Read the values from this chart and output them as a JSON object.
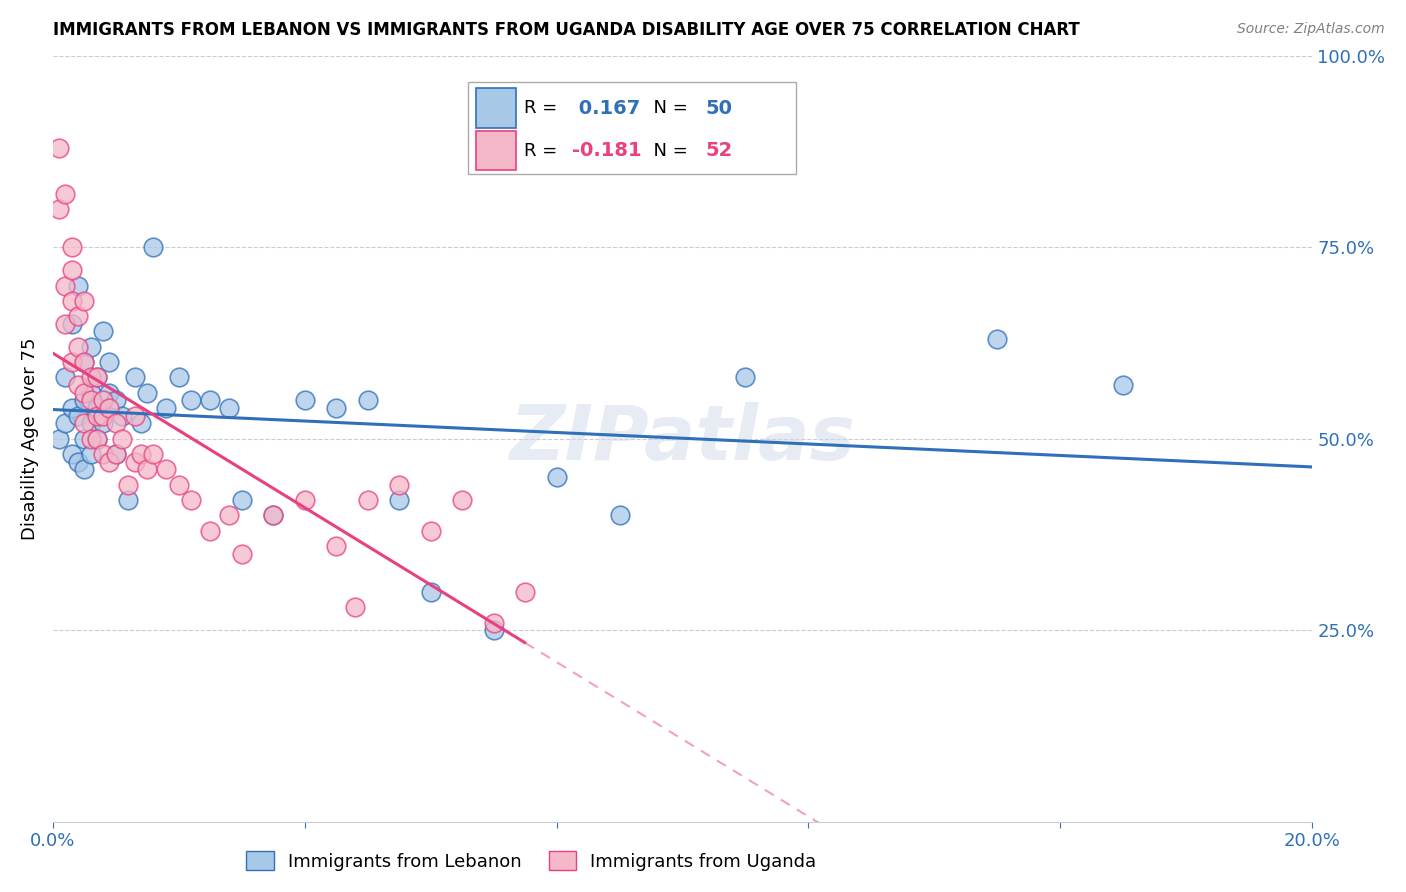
{
  "title": "IMMIGRANTS FROM LEBANON VS IMMIGRANTS FROM UGANDA DISABILITY AGE OVER 75 CORRELATION CHART",
  "source": "Source: ZipAtlas.com",
  "ylabel": "Disability Age Over 75",
  "xlim": [
    0.0,
    0.2
  ],
  "ylim": [
    0.0,
    1.0
  ],
  "lebanon_R": 0.167,
  "lebanon_N": 50,
  "uganda_R": -0.181,
  "uganda_N": 52,
  "lebanon_color": "#a8c8e8",
  "uganda_color": "#f4b8c8",
  "lebanon_line_color": "#3070b8",
  "uganda_line_color": "#e84080",
  "watermark": "ZIPatlas",
  "lebanon_x": [
    0.001,
    0.002,
    0.002,
    0.003,
    0.003,
    0.003,
    0.004,
    0.004,
    0.004,
    0.005,
    0.005,
    0.005,
    0.005,
    0.006,
    0.006,
    0.006,
    0.006,
    0.007,
    0.007,
    0.007,
    0.008,
    0.008,
    0.009,
    0.009,
    0.01,
    0.01,
    0.011,
    0.012,
    0.013,
    0.014,
    0.015,
    0.016,
    0.018,
    0.02,
    0.022,
    0.025,
    0.028,
    0.03,
    0.035,
    0.04,
    0.045,
    0.05,
    0.055,
    0.06,
    0.07,
    0.08,
    0.09,
    0.11,
    0.15,
    0.17
  ],
  "lebanon_y": [
    0.5,
    0.52,
    0.58,
    0.48,
    0.54,
    0.65,
    0.47,
    0.53,
    0.7,
    0.5,
    0.55,
    0.6,
    0.46,
    0.52,
    0.56,
    0.62,
    0.48,
    0.58,
    0.54,
    0.5,
    0.64,
    0.52,
    0.56,
    0.6,
    0.55,
    0.48,
    0.53,
    0.42,
    0.58,
    0.52,
    0.56,
    0.75,
    0.54,
    0.58,
    0.55,
    0.55,
    0.54,
    0.42,
    0.4,
    0.55,
    0.54,
    0.55,
    0.42,
    0.3,
    0.25,
    0.45,
    0.4,
    0.58,
    0.63,
    0.57
  ],
  "uganda_x": [
    0.001,
    0.001,
    0.002,
    0.002,
    0.002,
    0.003,
    0.003,
    0.003,
    0.003,
    0.004,
    0.004,
    0.004,
    0.005,
    0.005,
    0.005,
    0.005,
    0.006,
    0.006,
    0.006,
    0.007,
    0.007,
    0.007,
    0.008,
    0.008,
    0.008,
    0.009,
    0.009,
    0.01,
    0.01,
    0.011,
    0.012,
    0.013,
    0.013,
    0.014,
    0.015,
    0.016,
    0.018,
    0.02,
    0.022,
    0.025,
    0.028,
    0.03,
    0.035,
    0.04,
    0.045,
    0.048,
    0.05,
    0.055,
    0.06,
    0.065,
    0.07,
    0.075
  ],
  "uganda_y": [
    0.88,
    0.8,
    0.7,
    0.65,
    0.82,
    0.75,
    0.68,
    0.6,
    0.72,
    0.62,
    0.57,
    0.66,
    0.56,
    0.52,
    0.6,
    0.68,
    0.55,
    0.5,
    0.58,
    0.53,
    0.5,
    0.58,
    0.53,
    0.48,
    0.55,
    0.54,
    0.47,
    0.52,
    0.48,
    0.5,
    0.44,
    0.53,
    0.47,
    0.48,
    0.46,
    0.48,
    0.46,
    0.44,
    0.42,
    0.38,
    0.4,
    0.35,
    0.4,
    0.42,
    0.36,
    0.28,
    0.42,
    0.44,
    0.38,
    0.42,
    0.26,
    0.3
  ]
}
